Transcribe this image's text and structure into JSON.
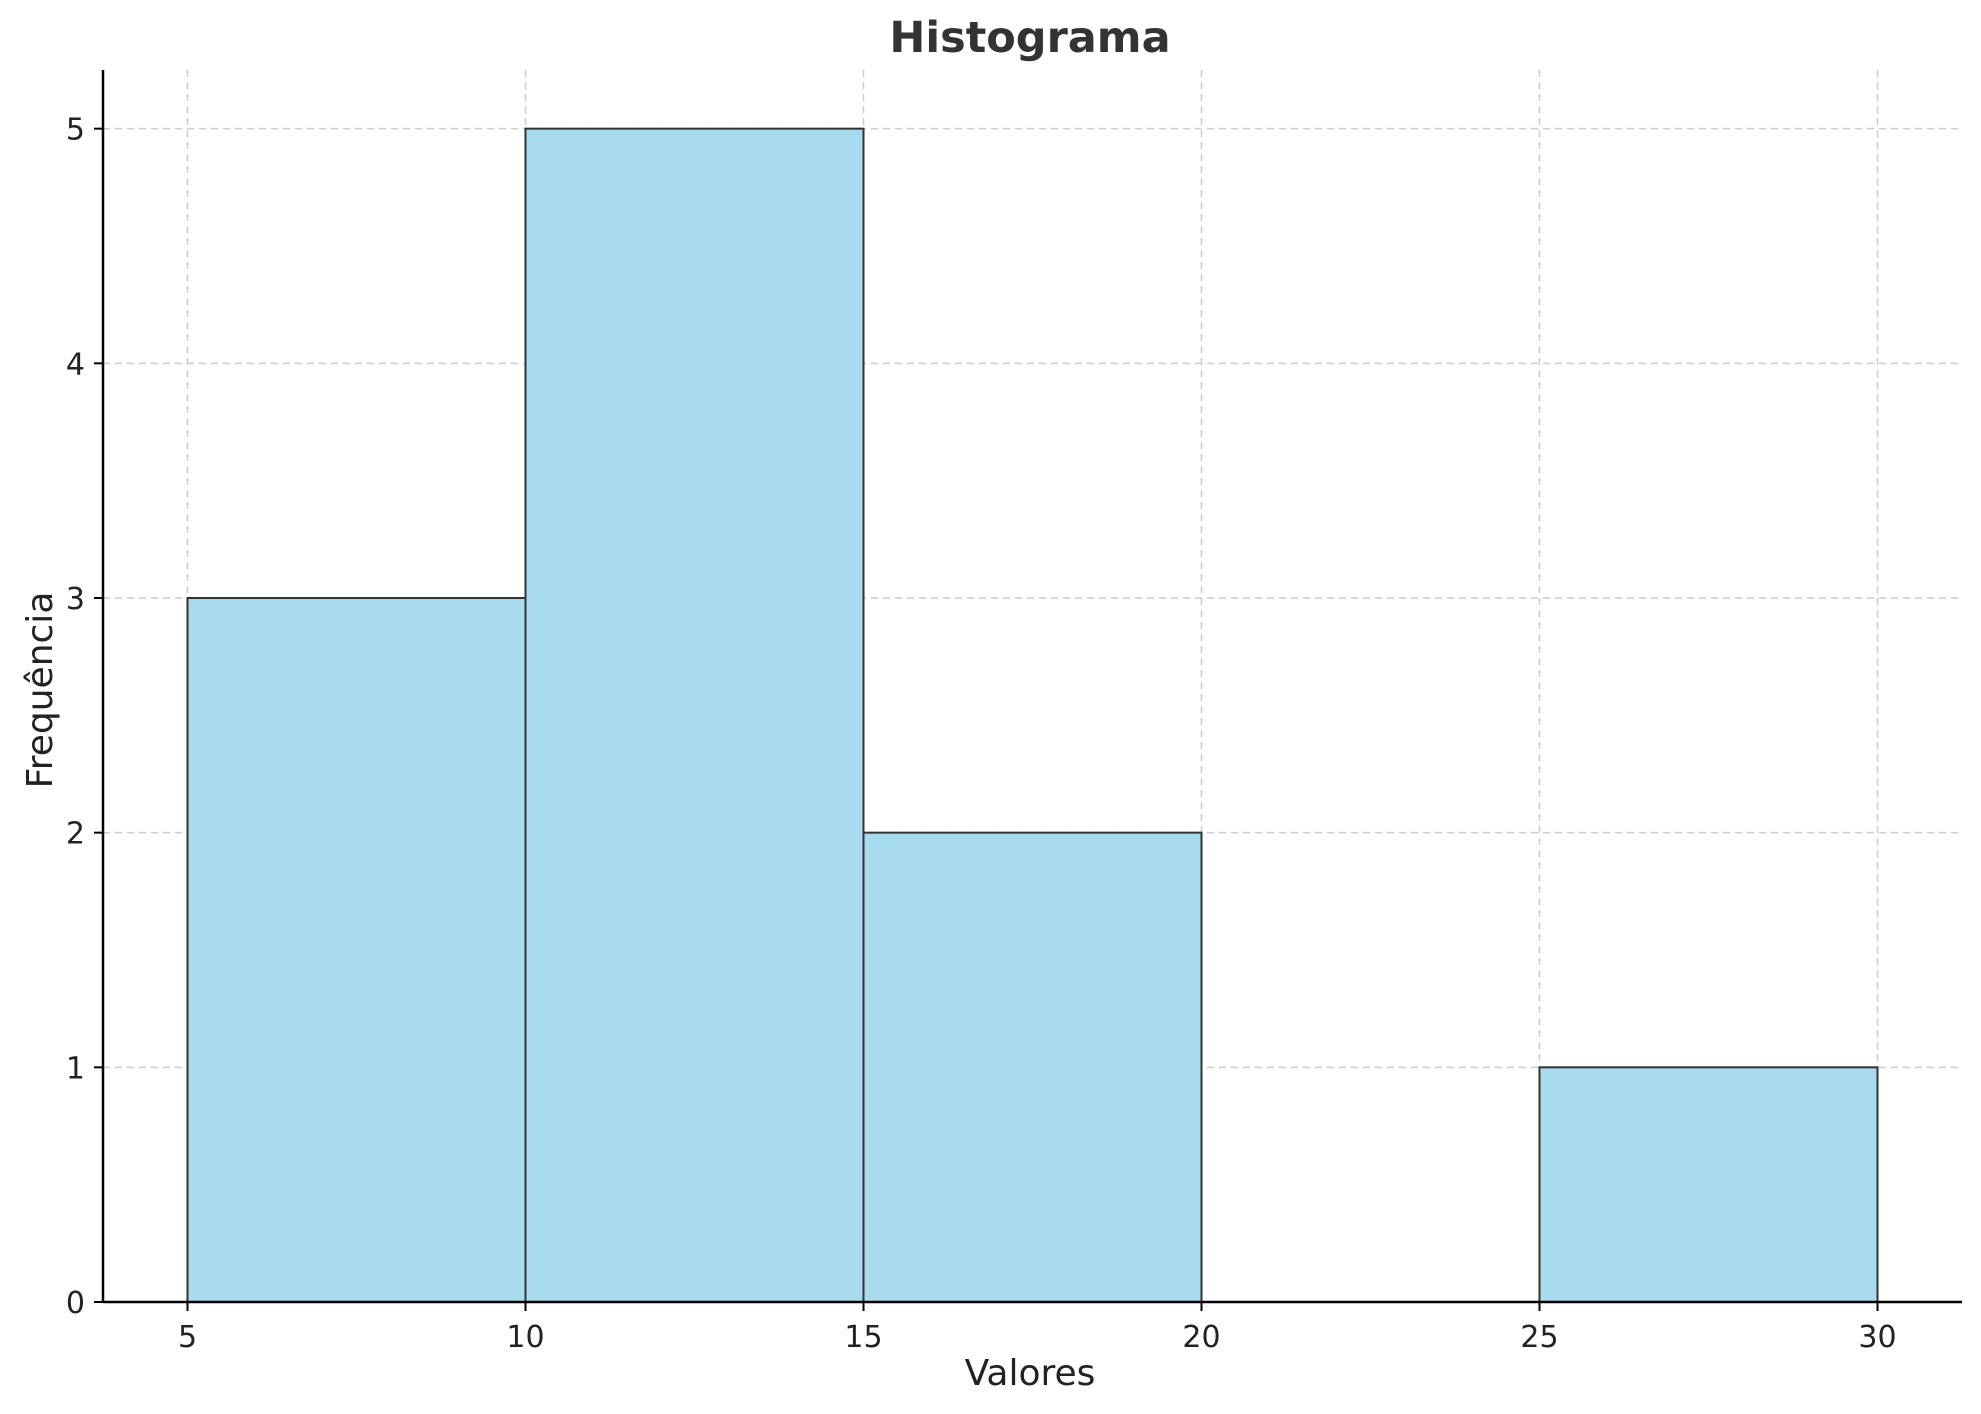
{
  "chart_data": {
    "type": "bar",
    "title": "Histograma",
    "xlabel": "Valores",
    "ylabel": "Frequência",
    "bins": [
      {
        "start": 5,
        "end": 10,
        "count": 3
      },
      {
        "start": 10,
        "end": 15,
        "count": 5
      },
      {
        "start": 15,
        "end": 20,
        "count": 2
      },
      {
        "start": 20,
        "end": 25,
        "count": 0
      },
      {
        "start": 25,
        "end": 30,
        "count": 1
      }
    ],
    "xlim": [
      3.75,
      31.25
    ],
    "ylim": [
      0,
      5.25
    ],
    "xticks": [
      5,
      10,
      15,
      20,
      25,
      30
    ],
    "yticks": [
      0,
      1,
      2,
      3,
      4,
      5
    ],
    "grid": true,
    "bar_color": "#a8dbee",
    "edge_color": "#333333"
  }
}
